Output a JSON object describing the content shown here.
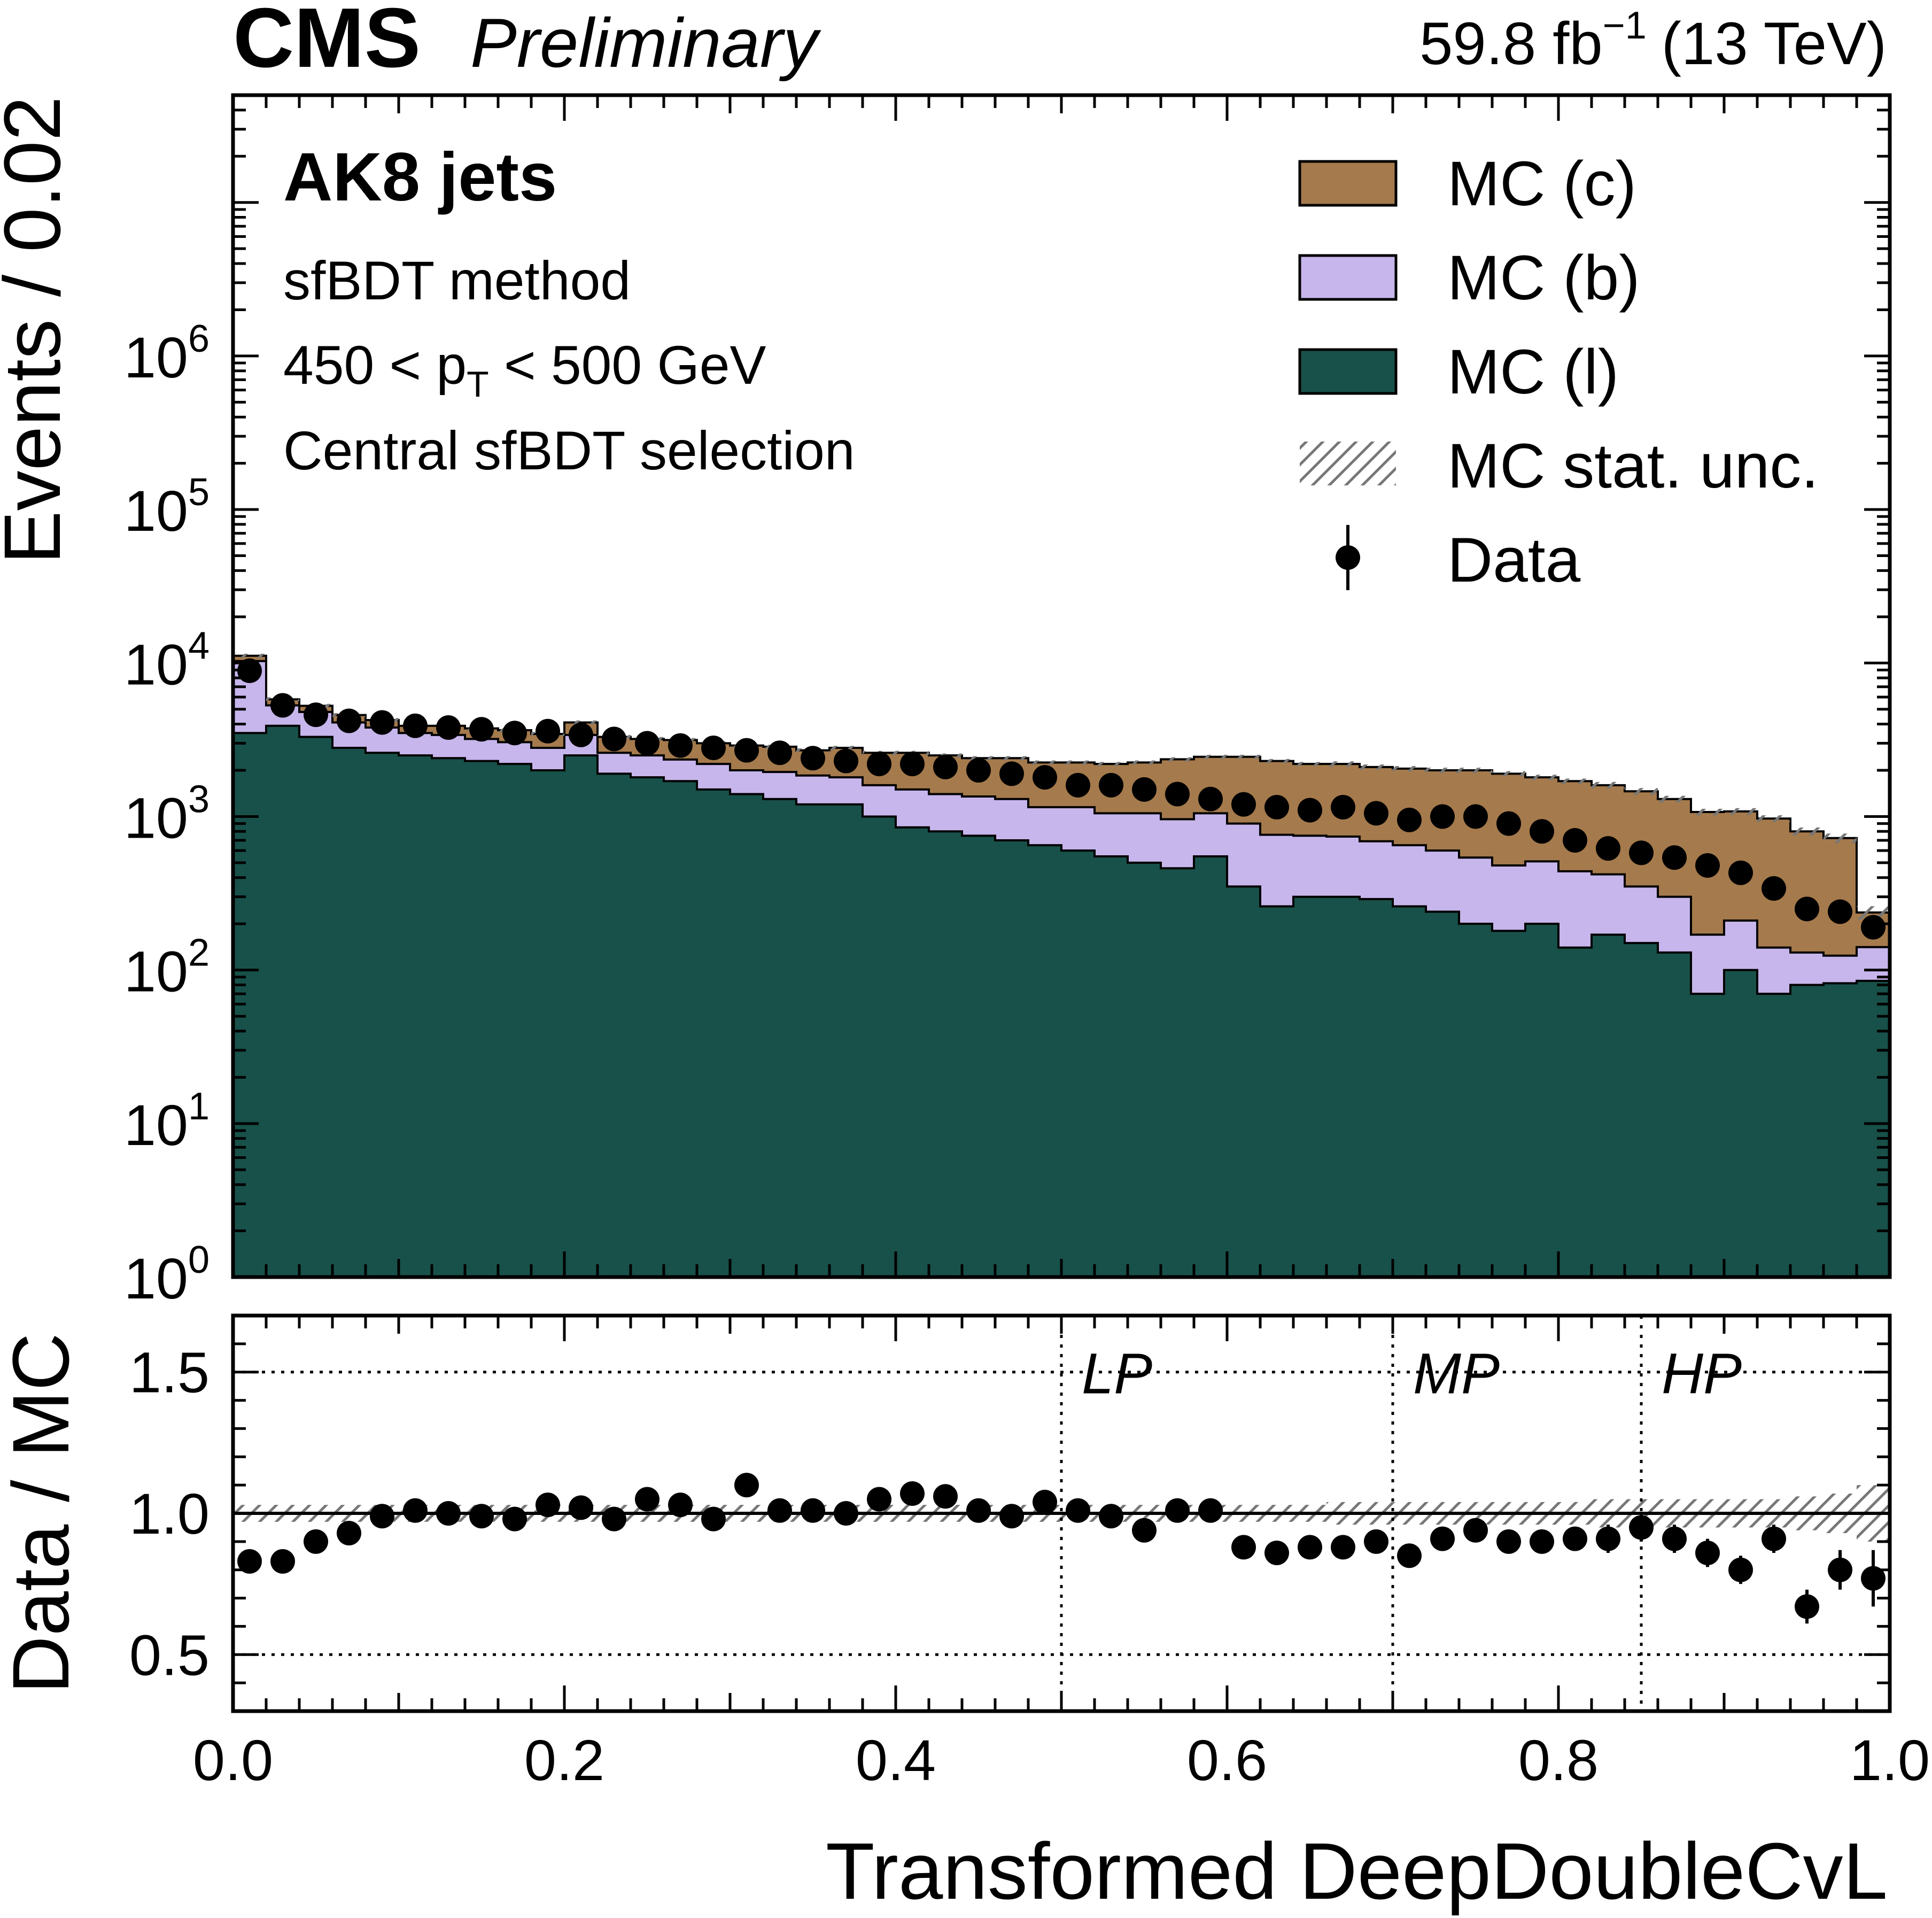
{
  "header": {
    "experiment": "CMS",
    "status": "Preliminary",
    "lumi_value": "59.8 fb",
    "lumi_exponent": "−1",
    "energy": "(13 TeV)"
  },
  "annotations": {
    "jet_type": "AK8 jets",
    "method": "sfBDT method",
    "pt_low": "450 < p",
    "pt_sub": "T",
    "pt_high": " < 500 GeV",
    "selection": "Central sfBDT selection"
  },
  "colors": {
    "mc_c": "#a57a4c",
    "mc_b": "#c7b6ec",
    "mc_l": "#18514a",
    "data": "#000000",
    "hatch": "#777777"
  },
  "legend": {
    "mc_c": "MC (c)",
    "mc_b": "MC (b)",
    "mc_l": "MC (l)",
    "stat": "MC stat. unc.",
    "data": "Data"
  },
  "chart_data": [
    {
      "type": "area",
      "title": "",
      "ylabel": "Events / 0.02",
      "yscale": "log",
      "ylim": [
        1,
        50000000
      ],
      "xlim": [
        0,
        1
      ],
      "bin_width": 0.02,
      "bin_edges": [
        0.0,
        0.02,
        0.04,
        0.06,
        0.08,
        0.1,
        0.12,
        0.14,
        0.16,
        0.18,
        0.2,
        0.22,
        0.24,
        0.26,
        0.28,
        0.3,
        0.32,
        0.34,
        0.36,
        0.38,
        0.4,
        0.42,
        0.44,
        0.46,
        0.48,
        0.5,
        0.52,
        0.54,
        0.56,
        0.58,
        0.6,
        0.62,
        0.64,
        0.66,
        0.68,
        0.7,
        0.72,
        0.74,
        0.76,
        0.78,
        0.8,
        0.82,
        0.84,
        0.86,
        0.88,
        0.9,
        0.92,
        0.94,
        0.96,
        0.98,
        1.0
      ],
      "y_ticks": [
        {
          "value": 1,
          "exp": "0"
        },
        {
          "value": 10,
          "exp": "1"
        },
        {
          "value": 100,
          "exp": "2"
        },
        {
          "value": 1000,
          "exp": "3"
        },
        {
          "value": 10000,
          "exp": "4"
        },
        {
          "value": 100000,
          "exp": "5"
        },
        {
          "value": 1000000,
          "exp": "6"
        }
      ],
      "y_tick_base": "10",
      "series": [
        {
          "name": "MC (l)",
          "values": [
            3500,
            3900,
            3300,
            2800,
            2600,
            2500,
            2400,
            2300,
            2200,
            2000,
            2500,
            1900,
            1800,
            1700,
            1500,
            1400,
            1300,
            1200,
            1200,
            1000,
            850,
            800,
            750,
            700,
            650,
            600,
            550,
            500,
            460,
            550,
            350,
            260,
            300,
            300,
            290,
            260,
            240,
            200,
            180,
            200,
            140,
            170,
            150,
            130,
            70,
            100,
            70,
            80,
            82,
            85
          ]
        },
        {
          "name": "MC (b)",
          "values": [
            6800,
            1400,
            1500,
            1300,
            1200,
            1000,
            1000,
            900,
            850,
            800,
            900,
            700,
            700,
            650,
            700,
            600,
            650,
            650,
            600,
            600,
            650,
            600,
            600,
            600,
            500,
            550,
            500,
            550,
            500,
            500,
            550,
            500,
            450,
            440,
            400,
            390,
            360,
            340,
            300,
            310,
            300,
            250,
            200,
            170,
            100,
            110,
            70,
            50,
            42,
            56
          ]
        },
        {
          "name": "MC (c)",
          "values": [
            850,
            500,
            460,
            480,
            450,
            400,
            500,
            550,
            600,
            650,
            700,
            700,
            700,
            800,
            800,
            900,
            900,
            850,
            1000,
            1000,
            1100,
            1100,
            1050,
            1100,
            1100,
            1100,
            1150,
            1200,
            1400,
            1400,
            1550,
            1540,
            1450,
            1460,
            1410,
            1400,
            1400,
            1460,
            1420,
            1290,
            1260,
            1180,
            1110,
            1000,
            900,
            870,
            830,
            670,
            600,
            96
          ]
        }
      ],
      "data_points": [
        8900,
        5300,
        4600,
        4200,
        4100,
        3900,
        3800,
        3700,
        3500,
        3600,
        3400,
        3200,
        3000,
        2900,
        2800,
        2700,
        2600,
        2400,
        2300,
        2200,
        2200,
        2100,
        2000,
        1900,
        1800,
        1600,
        1600,
        1500,
        1400,
        1300,
        1200,
        1150,
        1100,
        1150,
        1050,
        950,
        1000,
        1000,
        900,
        800,
        700,
        620,
        580,
        540,
        480,
        430,
        340,
        250,
        240,
        190
      ]
    },
    {
      "type": "scatter",
      "xlabel": "Transformed DeepDoubleCvL",
      "ylabel": "Data / MC",
      "xlim": [
        0,
        1
      ],
      "ylim": [
        0.3,
        1.7
      ],
      "x_ticks": [
        "0.0",
        "0.2",
        "0.4",
        "0.6",
        "0.8",
        "1.0"
      ],
      "y_ticks": [
        "0.5",
        "1.0",
        "1.5"
      ],
      "reference_line": 1.0,
      "dotted_hlines": [
        0.5,
        1.5
      ],
      "working_points": [
        {
          "label": "LP",
          "x": 0.5
        },
        {
          "label": "MP",
          "x": 0.7
        },
        {
          "label": "HP",
          "x": 0.85
        }
      ],
      "stat_unc": [
        0.03,
        0.03,
        0.03,
        0.03,
        0.03,
        0.03,
        0.03,
        0.03,
        0.03,
        0.03,
        0.03,
        0.03,
        0.03,
        0.03,
        0.03,
        0.03,
        0.03,
        0.03,
        0.03,
        0.03,
        0.03,
        0.03,
        0.03,
        0.03,
        0.03,
        0.03,
        0.03,
        0.03,
        0.03,
        0.03,
        0.03,
        0.03,
        0.03,
        0.04,
        0.04,
        0.04,
        0.04,
        0.04,
        0.04,
        0.04,
        0.04,
        0.05,
        0.05,
        0.05,
        0.05,
        0.05,
        0.05,
        0.06,
        0.07,
        0.1
      ],
      "values": [
        0.83,
        0.83,
        0.9,
        0.93,
        0.99,
        1.01,
        1.0,
        0.99,
        0.98,
        1.03,
        1.02,
        0.98,
        1.05,
        1.03,
        0.98,
        1.1,
        1.01,
        1.01,
        1.0,
        1.05,
        1.07,
        1.06,
        1.01,
        0.99,
        1.04,
        1.01,
        0.99,
        0.94,
        1.01,
        1.01,
        0.88,
        0.86,
        0.88,
        0.88,
        0.9,
        0.85,
        0.91,
        0.94,
        0.9,
        0.9,
        0.91,
        0.91,
        0.95,
        0.91,
        0.86,
        0.8,
        0.91,
        0.67,
        0.8,
        0.77
      ]
    }
  ]
}
